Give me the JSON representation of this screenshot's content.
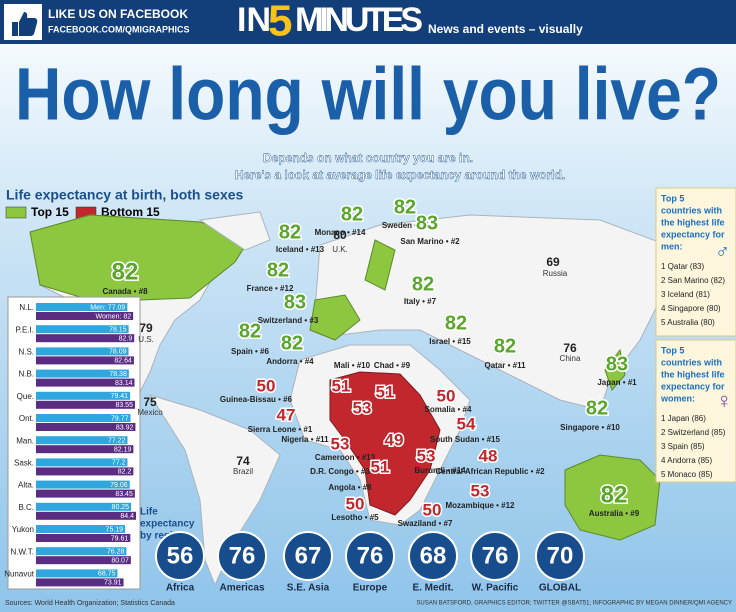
{
  "header": {
    "like_us": "LIKE US ON FACEBOOK",
    "url": "FACEBOOK.COM/QMIGRAPHICS",
    "brand_a": "IN",
    "brand_b": "5",
    "brand_c": "MINUTES",
    "tagline": "News and events – visually"
  },
  "title": "How long will you live?",
  "subtitle": [
    "Depends on what country you are in.",
    "Here's a look at average life expectancy around the world."
  ],
  "legend": {
    "heading": "Life expectancy at birth, both sexes",
    "top": "Top 15",
    "bottom": "Bottom 15"
  },
  "top15": [
    {
      "value": 82,
      "label": "Canada • #8"
    },
    {
      "value": 82,
      "label": "Iceland • #13"
    },
    {
      "value": 82,
      "label": "Monaco • #14"
    },
    {
      "value": 82,
      "label": "Sweden • #5"
    },
    {
      "value": 83,
      "label": "San Marino • #2"
    },
    {
      "value": 82,
      "label": "France • #12"
    },
    {
      "value": 83,
      "label": "Switzerland • #3"
    },
    {
      "value": 82,
      "label": "Italy • #7"
    },
    {
      "value": 82,
      "label": "Spain • #6"
    },
    {
      "value": 82,
      "label": "Andorra • #4"
    },
    {
      "value": 82,
      "label": "Israel • #15"
    },
    {
      "value": 82,
      "label": "Qatar • #11"
    },
    {
      "value": 83,
      "label": "Japan • #1"
    },
    {
      "value": 82,
      "label": "Singapore • #10"
    },
    {
      "value": 82,
      "label": "Australia • #9"
    }
  ],
  "bottom15": [
    {
      "value": 50,
      "label": "Guinea-Bissau • #6"
    },
    {
      "value": 51,
      "label": "Mali • #10"
    },
    {
      "value": 51,
      "label": "Chad • #9"
    },
    {
      "value": 50,
      "label": "Somalia • #4"
    },
    {
      "value": 47,
      "label": "Sierra Leone • #1"
    },
    {
      "value": 53,
      "label": "Nigeria • #11"
    },
    {
      "value": 54,
      "label": "South Sudan • #15"
    },
    {
      "value": 53,
      "label": "Cameroon • #13"
    },
    {
      "value": 49,
      "label": "D.R. Congo • #3"
    },
    {
      "value": 53,
      "label": "Burundi • #14"
    },
    {
      "value": 48,
      "label": "Central African Republic • #2"
    },
    {
      "value": 51,
      "label": "Angola • #8"
    },
    {
      "value": 53,
      "label": "Mozambique • #12"
    },
    {
      "value": 50,
      "label": "Lesotho • #5"
    },
    {
      "value": 50,
      "label": "Swaziland • #7"
    }
  ],
  "others": [
    {
      "value": 80,
      "label": "U.K."
    },
    {
      "value": 69,
      "label": "Russia"
    },
    {
      "value": 76,
      "label": "China"
    },
    {
      "value": 79,
      "label": "U.S."
    },
    {
      "value": 75,
      "label": "Mexico"
    },
    {
      "value": 74,
      "label": "Brazil"
    }
  ],
  "provinces": [
    {
      "name": "N.L.",
      "men": 77.09,
      "women": 82,
      "men_label": "Men: 77.09",
      "women_label": "Women: 82"
    },
    {
      "name": "P.E.I.",
      "men": 78.15,
      "women": 82.9
    },
    {
      "name": "N.S.",
      "men": 78.09,
      "women": 82.64
    },
    {
      "name": "N.B.",
      "men": 78.38,
      "women": 83.14
    },
    {
      "name": "Que.",
      "men": 79.41,
      "women": 83.55
    },
    {
      "name": "Ont.",
      "men": 79.77,
      "women": 83.92
    },
    {
      "name": "Man.",
      "men": 77.22,
      "women": 82.19
    },
    {
      "name": "Sask.",
      "men": 77.2,
      "women": 82.2
    },
    {
      "name": "Alta.",
      "men": 79.06,
      "women": 83.45
    },
    {
      "name": "B.C.",
      "men": 80.25,
      "women": 84.4
    },
    {
      "name": "Yukon",
      "men": 75.19,
      "women": 79.61
    },
    {
      "name": "N.W.T.",
      "men": 76.28,
      "women": 80.07
    },
    {
      "name": "Nunavut",
      "men": 68.75,
      "women": 73.91
    }
  ],
  "regions": {
    "heading": [
      "Life",
      "expectancy",
      "by region"
    ],
    "items": [
      {
        "value": 56,
        "label": "Africa"
      },
      {
        "value": 76,
        "label": "Americas"
      },
      {
        "value": 67,
        "label": "S.E. Asia"
      },
      {
        "value": 76,
        "label": "Europe"
      },
      {
        "value": 68,
        "label": "E. Medit."
      },
      {
        "value": 76,
        "label": "W. Pacific"
      },
      {
        "value": 70,
        "label": "GLOBAL"
      }
    ]
  },
  "top5_men": {
    "heading": [
      "Top 5",
      "countries with",
      "the highest life",
      "expectancy for",
      "men:"
    ],
    "items": [
      "1 Qatar (83)",
      "2 San Marino (82)",
      "3 Iceland (81)",
      "4 Singapore (80)",
      "5 Australia (80)"
    ]
  },
  "top5_women": {
    "heading": [
      "Top 5",
      "countries with",
      "the highest life",
      "expectancy for",
      "women:"
    ],
    "items": [
      "1 Japan (86)",
      "2 Switzerland (85)",
      "3 Spain (85)",
      "4 Andorra (85)",
      "5 Monaco (85)"
    ]
  },
  "footer": {
    "sources": "Sources: World Health Organization; Statistics Canada",
    "credits": "SUSAN BATSFORD, GRAPHICS EDITOR; TWITTER @SBAT51; INFOGRAPHIC BY MEGAN DINNER/QMI AGENCY"
  }
}
